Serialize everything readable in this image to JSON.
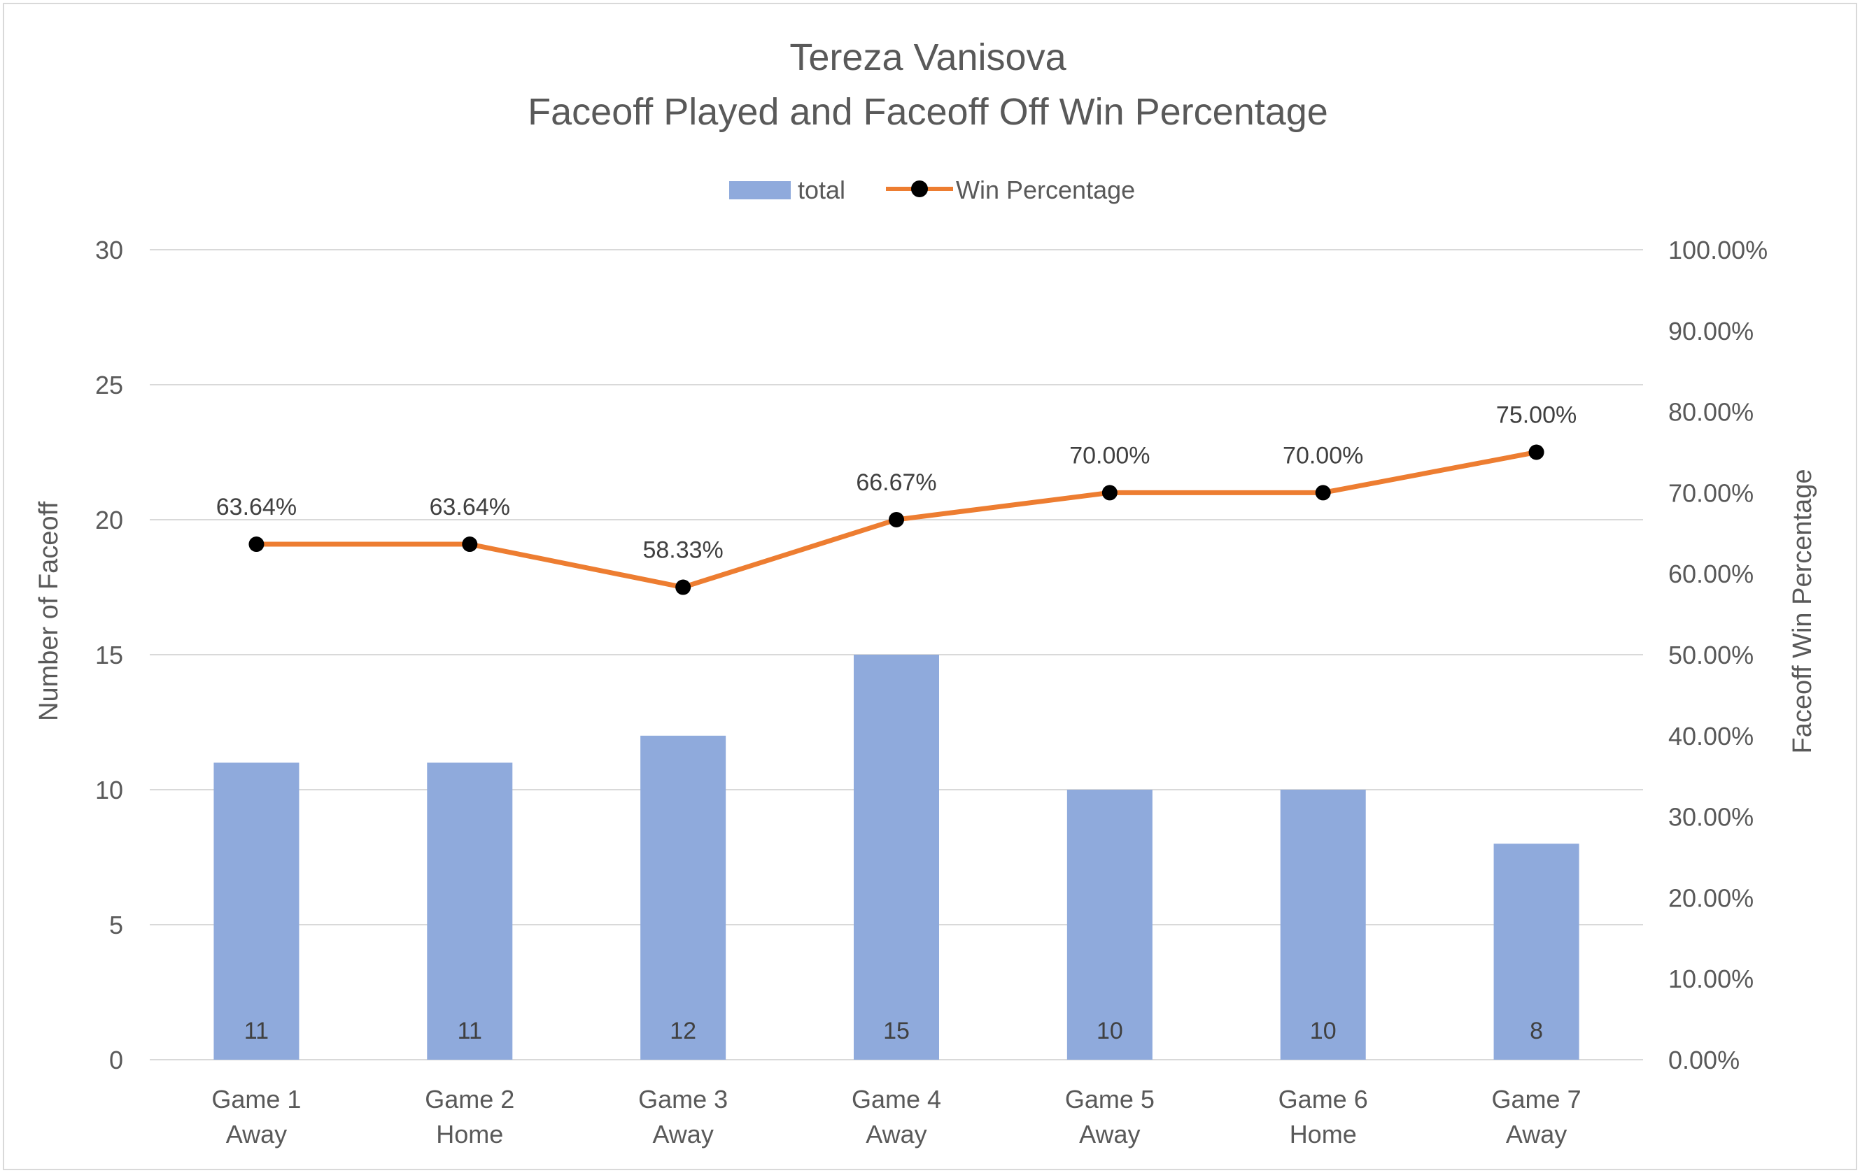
{
  "chart_data": {
    "type": "bar",
    "title_lines": [
      "Tereza Vanisova",
      "Faceoff Played and Faceoff Off Win Percentage"
    ],
    "categories": [
      [
        "Game 1",
        "Away"
      ],
      [
        "Game 2",
        "Home"
      ],
      [
        "Game 3",
        "Away"
      ],
      [
        "Game 4",
        "Away"
      ],
      [
        "Game 5",
        "Away"
      ],
      [
        "Game 6",
        "Home"
      ],
      [
        "Game 7",
        "Away"
      ]
    ],
    "series": [
      {
        "name": "total",
        "type": "bar",
        "axis": "left",
        "values": [
          11,
          11,
          12,
          15,
          10,
          10,
          8
        ],
        "labels": [
          "11",
          "11",
          "12",
          "15",
          "10",
          "10",
          "8"
        ],
        "color": "#8faadc"
      },
      {
        "name": "Win Percentage",
        "type": "line",
        "axis": "right",
        "values": [
          63.64,
          63.64,
          58.33,
          66.67,
          70.0,
          70.0,
          75.0
        ],
        "labels": [
          "63.64%",
          "63.64%",
          "58.33%",
          "66.67%",
          "70.00%",
          "70.00%",
          "75.00%"
        ],
        "color": "#ed7d31",
        "marker_color": "#000000"
      }
    ],
    "ylabel": "Number of Faceoff",
    "y2label": "Faceoff Win Percentage",
    "ylim": [
      0,
      30
    ],
    "y2lim": [
      0,
      100
    ],
    "y_ticks": [
      "0",
      "5",
      "10",
      "15",
      "20",
      "25",
      "30"
    ],
    "y2_ticks": [
      "0.00%",
      "10.00%",
      "20.00%",
      "30.00%",
      "40.00%",
      "50.00%",
      "60.00%",
      "70.00%",
      "80.00%",
      "90.00%",
      "100.00%"
    ],
    "grid": true,
    "legend_position": "top-center",
    "colors": {
      "text": "#595959",
      "label": "#404040",
      "grid": "#d9d9d9",
      "frame": "#d9d9d9"
    }
  }
}
